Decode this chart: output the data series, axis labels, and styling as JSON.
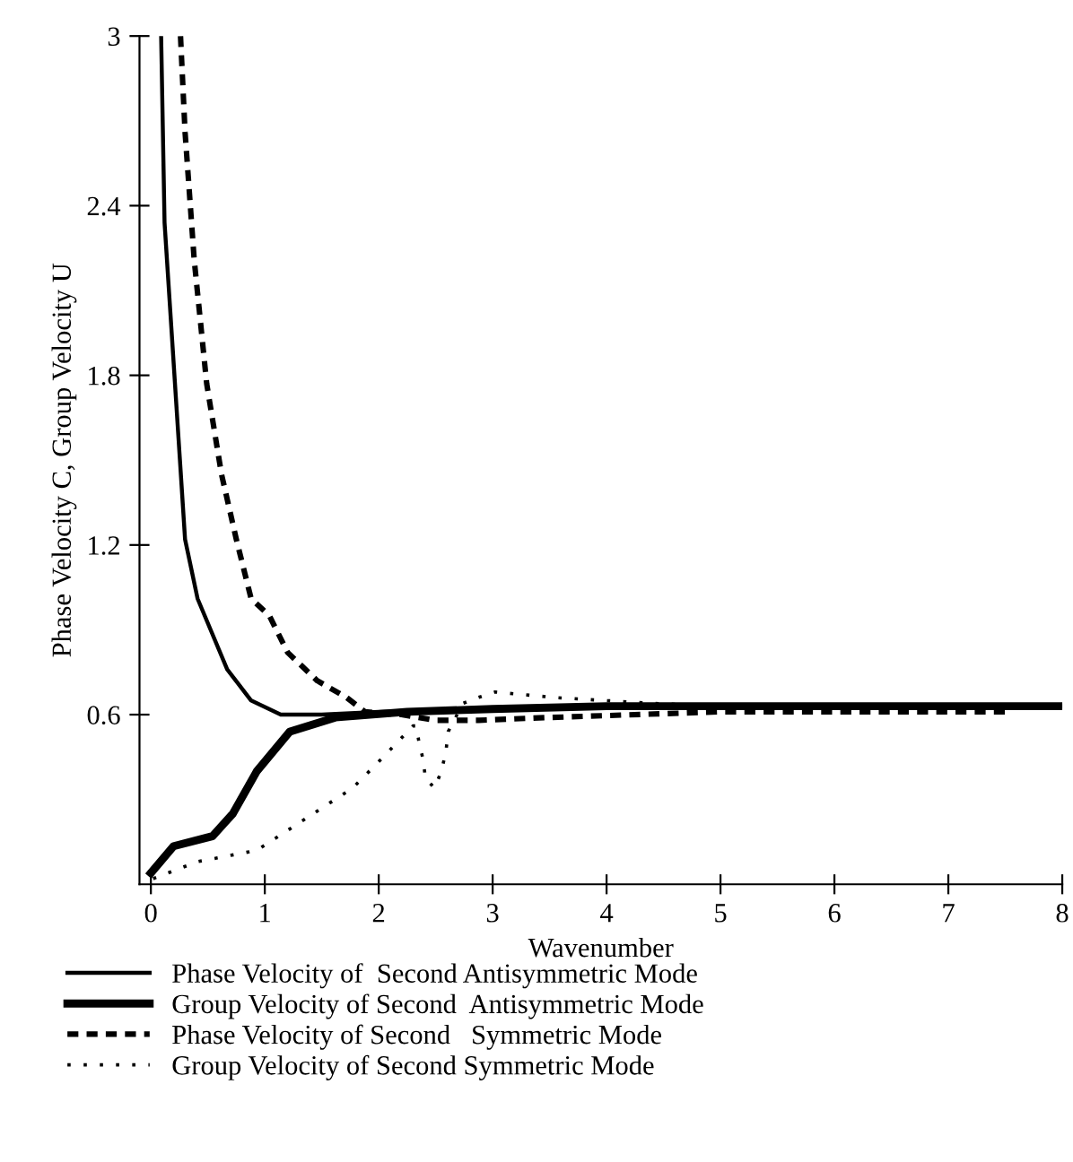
{
  "chart_data": {
    "type": "line",
    "xlabel": "Wavenumber",
    "ylabel": "Phase Velocity C, Group Velocity U",
    "xlim": [
      -0.1,
      8
    ],
    "ylim": [
      0,
      3
    ],
    "xticks": [
      0,
      1,
      2,
      3,
      4,
      5,
      6,
      7,
      8
    ],
    "yticks": [
      0.6,
      1.2,
      1.8,
      2.4,
      3
    ],
    "grid": false,
    "legend": "bottom",
    "marker": "none",
    "series": [
      {
        "name": "Phase Velocity of  Second Antisymmetric Mode",
        "color": "#000000",
        "line_style": "solid",
        "x": [
          0.09,
          0.12,
          0.3,
          0.41,
          0.67,
          0.88,
          1.14,
          1.5,
          2,
          3,
          4,
          5,
          6,
          7,
          8
        ],
        "values": [
          3,
          2.34,
          1.22,
          1.01,
          0.76,
          0.65,
          0.6,
          0.6,
          0.61,
          0.62,
          0.63,
          0.63,
          0.63,
          0.63,
          0.63
        ]
      },
      {
        "name": "Group Velocity of Second  Antisymmetric Mode",
        "color": "#000000",
        "line_style": "solid",
        "x": [
          0.0,
          0.2,
          0.54,
          0.72,
          0.93,
          1.22,
          1.62,
          2.25,
          3,
          4,
          5,
          6,
          7,
          8
        ],
        "values": [
          0.04,
          0.135,
          0.17,
          0.25,
          0.4,
          0.54,
          0.59,
          0.61,
          0.62,
          0.63,
          0.63,
          0.63,
          0.63,
          0.63
        ]
      },
      {
        "name": "Phase Velocity of Second   Symmetric Mode",
        "color": "#000000",
        "line_style": "dashed",
        "x": [
          0.26,
          0.3,
          0.38,
          0.49,
          0.62,
          0.75,
          0.88,
          1.04,
          1.2,
          1.46,
          1.72,
          1.88,
          2.2,
          2.5,
          2.88,
          3.5,
          5,
          6,
          7,
          7.5
        ],
        "values": [
          3,
          2.66,
          2.21,
          1.77,
          1.45,
          1.22,
          1.01,
          0.95,
          0.82,
          0.72,
          0.66,
          0.61,
          0.6,
          0.58,
          0.58,
          0.59,
          0.61,
          0.61,
          0.61,
          0.61
        ]
      },
      {
        "name": "Group Velocity of Second Symmetric Mode",
        "color": "#000000",
        "line_style": "dotted",
        "x": [
          0.02,
          0.41,
          0.93,
          1.35,
          1.77,
          2.04,
          2.3,
          2.33,
          2.35,
          2.39,
          2.41,
          2.49,
          2.55,
          2.59,
          2.61,
          2.74,
          2.87,
          3.02,
          3.29,
          3.56,
          3.98,
          4.39,
          5,
          6,
          7,
          8
        ],
        "values": [
          0.02,
          0.08,
          0.12,
          0.23,
          0.34,
          0.45,
          0.56,
          0.56,
          0.51,
          0.44,
          0.375,
          0.34,
          0.4,
          0.47,
          0.54,
          0.64,
          0.66,
          0.68,
          0.67,
          0.66,
          0.65,
          0.64,
          0.63,
          0.63,
          0.63,
          0.63
        ]
      }
    ]
  }
}
